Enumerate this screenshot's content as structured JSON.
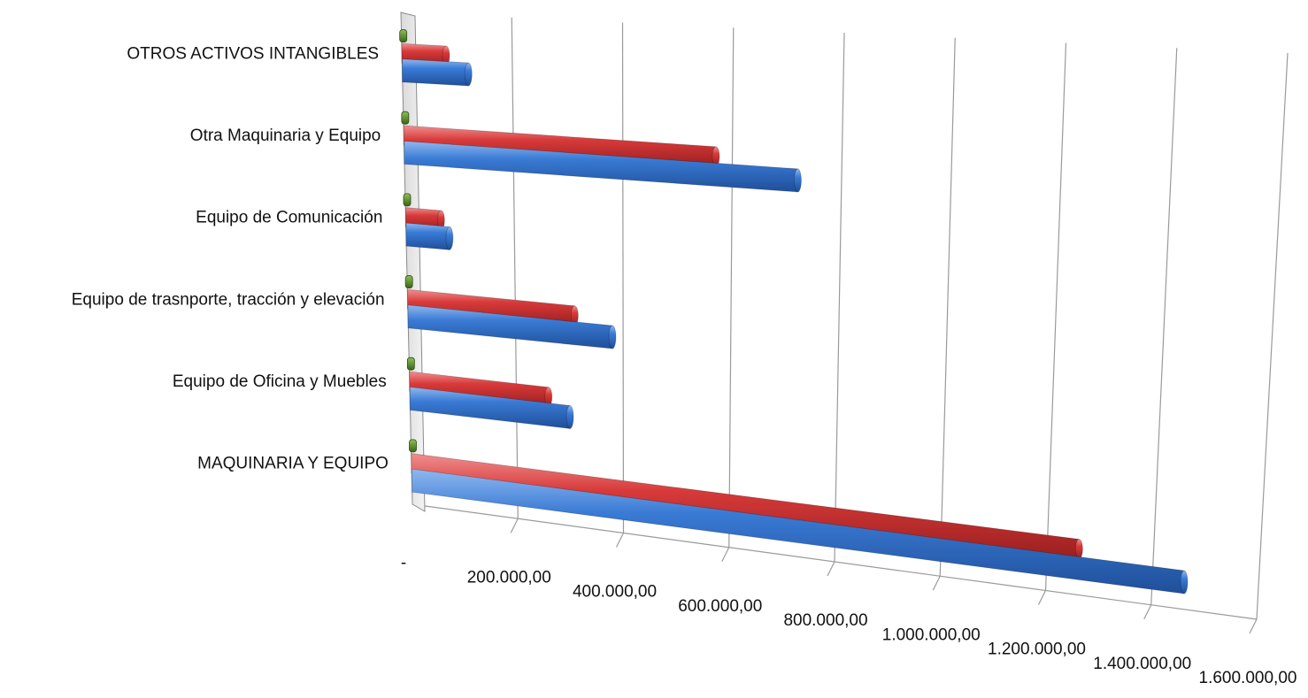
{
  "chart_data": {
    "type": "bar",
    "orientation": "horizontal",
    "style": "3d-perspective",
    "categories": [
      "MAQUINARIA Y EQUIPO",
      "Equipo de Oficina y Muebles",
      "Equipo de trasnporte, tracción y elevación",
      "Equipo de Comunicación",
      "Otra Maquinaria y Equipo",
      "OTROS ACTIVOS INTANGIBLES"
    ],
    "series": [
      {
        "color": "#2f6fc8",
        "values": [
          1460000,
          300000,
          380000,
          80000,
          720000,
          120000
        ]
      },
      {
        "color": "#d63434",
        "values": [
          1260000,
          260000,
          310000,
          65000,
          570000,
          80000
        ]
      },
      {
        "color": "#4e7d1e",
        "values": [
          0,
          0,
          0,
          0,
          0,
          0
        ]
      }
    ],
    "x_tick_labels": [
      "-",
      "200.000,00",
      "400.000,00",
      "600.000,00",
      "800.000,00",
      "1.000.000,00",
      "1.200.000,00",
      "1.400.000,00",
      "1.600.000,00"
    ],
    "xlim": [
      0,
      1600000
    ],
    "grid": true,
    "legend": "none"
  }
}
